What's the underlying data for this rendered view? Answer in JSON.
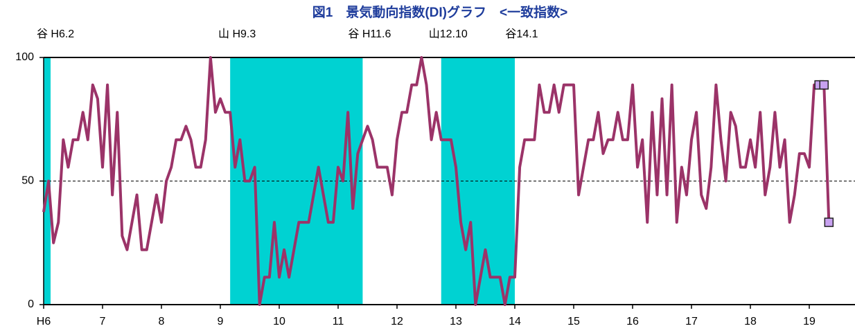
{
  "chart_data": {
    "type": "line",
    "title": "図1　景気動向指数(DI)グラフ　<一致指数>",
    "categories": [
      "H6",
      null,
      null,
      null,
      null,
      null,
      null,
      null,
      null,
      null,
      null,
      null,
      "7",
      null,
      null,
      null,
      null,
      null,
      null,
      null,
      null,
      null,
      null,
      null,
      "8",
      null,
      null,
      null,
      null,
      null,
      null,
      null,
      null,
      null,
      null,
      null,
      "9",
      null,
      null,
      null,
      null,
      null,
      null,
      null,
      null,
      null,
      null,
      null,
      "10",
      null,
      null,
      null,
      null,
      null,
      null,
      null,
      null,
      null,
      null,
      null,
      "11",
      null,
      null,
      null,
      null,
      null,
      null,
      null,
      null,
      null,
      null,
      null,
      "12",
      null,
      null,
      null,
      null,
      null,
      null,
      null,
      null,
      null,
      null,
      null,
      "13",
      null,
      null,
      null,
      null,
      null,
      null,
      null,
      null,
      null,
      null,
      null,
      "14",
      null,
      null,
      null,
      null,
      null,
      null,
      null,
      null,
      null,
      null,
      null,
      "15",
      null,
      null,
      null,
      null,
      null,
      null,
      null,
      null,
      null,
      null,
      null,
      "16",
      null,
      null,
      null,
      null,
      null,
      null,
      null,
      null,
      null,
      null,
      null,
      "17",
      null,
      null,
      null,
      null,
      null,
      null,
      null,
      null,
      null,
      null,
      null,
      "18",
      null,
      null,
      null,
      null,
      null,
      null,
      null,
      null,
      null,
      null,
      null,
      "19",
      null,
      null,
      null,
      null
    ],
    "values": [
      37.5,
      50,
      25,
      33.3,
      66.7,
      55.6,
      66.7,
      66.7,
      77.8,
      66.7,
      88.9,
      83.3,
      55.6,
      88.9,
      44.4,
      77.8,
      27.8,
      22.2,
      33.3,
      44.4,
      22.2,
      22.2,
      33.3,
      44.4,
      33.3,
      50,
      55.6,
      66.7,
      66.7,
      72.2,
      66.7,
      55.6,
      55.6,
      66.7,
      100,
      77.8,
      83.3,
      77.8,
      77.8,
      55.6,
      66.7,
      50,
      50,
      55.6,
      0,
      11.1,
      11.1,
      33.3,
      11.1,
      22.2,
      11.1,
      22.2,
      33.3,
      33.3,
      33.3,
      44.4,
      55.6,
      44.4,
      33.3,
      33.3,
      55.6,
      50,
      77.8,
      38.9,
      61.1,
      66.7,
      72.2,
      66.7,
      55.6,
      55.6,
      55.6,
      44.4,
      66.7,
      77.8,
      77.8,
      88.9,
      88.9,
      100,
      88.9,
      66.7,
      77.8,
      66.7,
      66.7,
      66.7,
      55.6,
      33.3,
      22.2,
      33.3,
      0,
      11.1,
      22.2,
      11.1,
      11.1,
      11.1,
      0,
      11.1,
      11.1,
      55.6,
      66.7,
      66.7,
      66.7,
      88.9,
      77.8,
      77.8,
      88.9,
      77.8,
      88.9,
      88.9,
      88.9,
      44.4,
      55.6,
      66.7,
      66.7,
      77.8,
      61.1,
      66.7,
      66.7,
      77.8,
      66.7,
      66.7,
      88.9,
      55.6,
      66.7,
      33.3,
      77.8,
      44.4,
      83.3,
      44.4,
      88.9,
      33.3,
      55.6,
      44.4,
      66.7,
      77.8,
      44.4,
      38.9,
      55.6,
      88.9,
      66.7,
      50,
      77.8,
      72.2,
      55.6,
      55.6,
      66.7,
      55.6,
      77.8,
      44.4,
      55.6,
      77.8,
      55.6,
      66.7,
      33.3,
      44.4,
      61.1,
      61.1,
      55.6,
      88.9,
      88.9,
      88.9,
      33.3
    ],
    "color": "#9b3368",
    "highlight_points": [
      158,
      159,
      160
    ],
    "highlight_color": "#c8a2f0",
    "shaded_periods": [
      [
        0,
        1
      ],
      [
        38,
        65
      ],
      [
        81,
        96
      ]
    ],
    "shade_color": "#00d2d2",
    "annotations": [
      {
        "text": "谷 H6.2",
        "at": 1
      },
      {
        "text": "山 H9.3",
        "at": 38
      },
      {
        "text": "谷 H11.6",
        "at": 65
      },
      {
        "text": "山12.10",
        "at": 81
      },
      {
        "text": "谷14.1",
        "at": 96
      }
    ],
    "ylim": [
      0,
      100
    ],
    "yticks": [
      0,
      50,
      100
    ],
    "grid": true
  }
}
